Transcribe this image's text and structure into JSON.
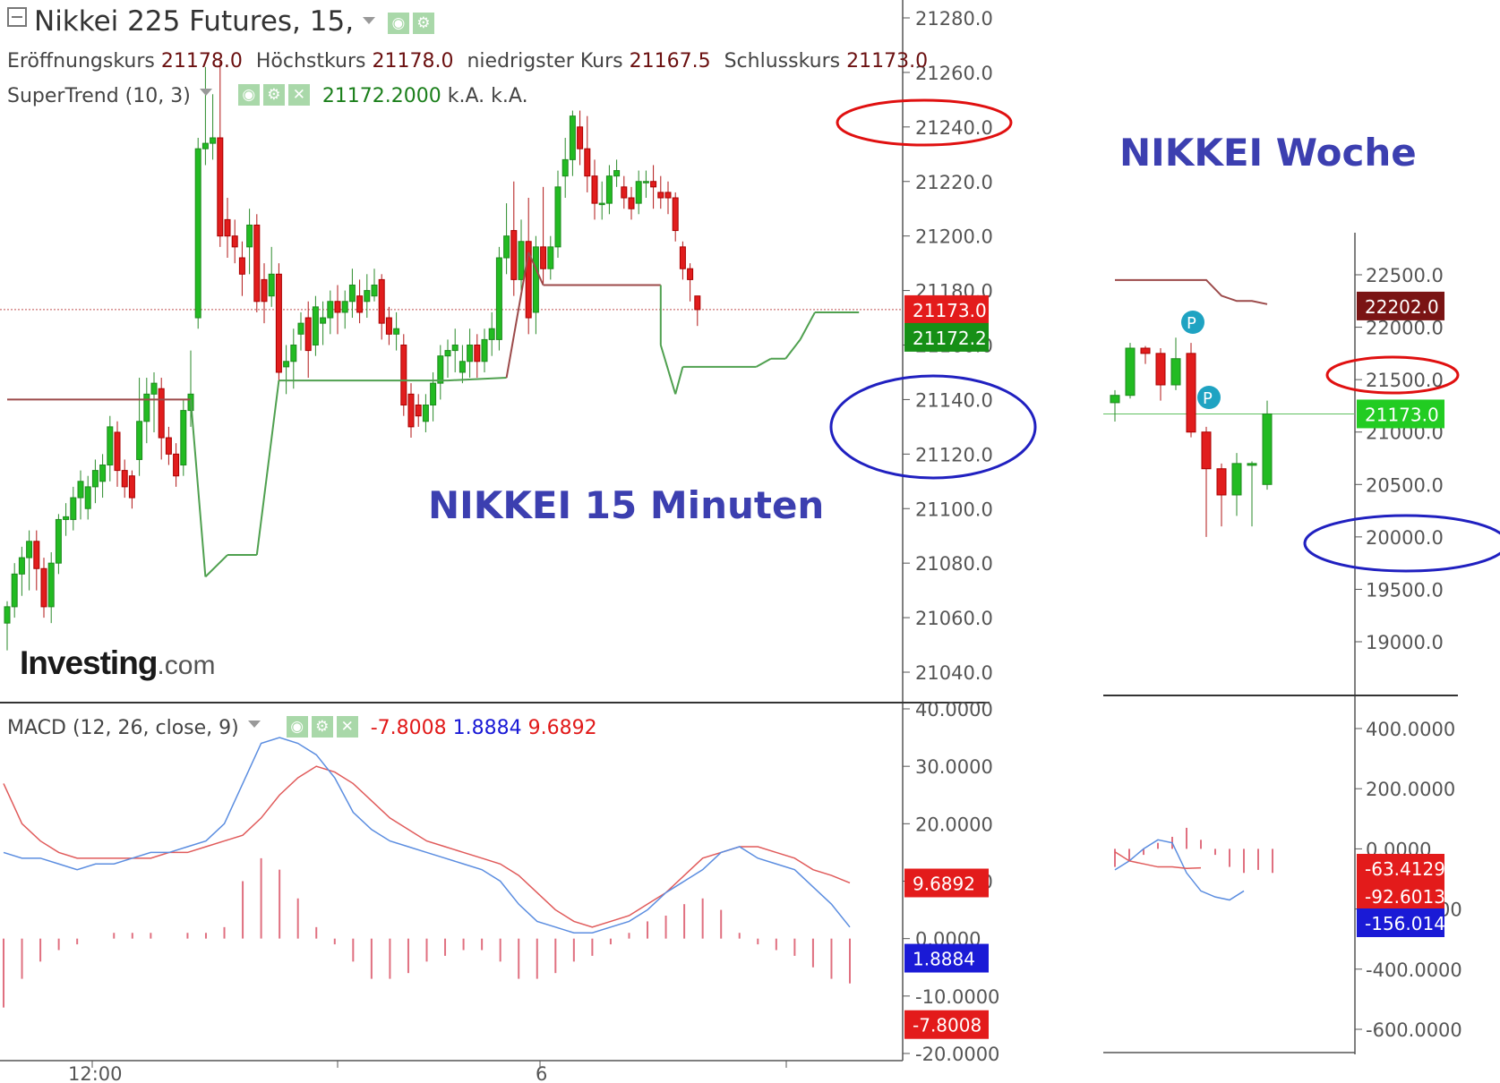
{
  "header": {
    "title": "Nikkei 225 Futures, 15,",
    "ohlc": [
      {
        "label": "Eröffnungskurs",
        "value": "21178.0"
      },
      {
        "label": "Höchstkurs",
        "value": "21178.0"
      },
      {
        "label": "niedrigster Kurs",
        "value": "21167.5"
      },
      {
        "label": "Schlusskurs",
        "value": "21173.0"
      }
    ],
    "supertrend": {
      "label": "SuperTrend (10, 3)",
      "value": "21172.2000",
      "v2": "k.A.",
      "v3": "k.A."
    },
    "macd": {
      "label": "MACD (12, 26, close, 9)",
      "v1": "-7.8008",
      "v2": "1.8884",
      "v3": "9.6892"
    }
  },
  "annotations": {
    "main": "NIKKEI 15 Minuten",
    "weekly": "NIKKEI Woche"
  },
  "logo": {
    "name": "Investing",
    "suffix": ".com"
  },
  "icons": [
    "collapse-icon",
    "dropdown-icon",
    "eye-icon",
    "gear-icon",
    "close-icon"
  ],
  "colors": {
    "up": "#22bb22",
    "down": "#e11d1d",
    "supertrend_up": "#4fa04f",
    "supertrend_down": "#9c4a4a",
    "macd": "#5b8de0",
    "signal": "#e05a5a",
    "hist": "#e07080",
    "circle_red": "#e01010",
    "circle_blue": "#2020c0"
  },
  "chart_data": [
    {
      "type": "candlestick",
      "title": "Nikkei 225 Futures, 15",
      "ylim": [
        21030,
        21290
      ],
      "yticks": [
        "21280.0",
        "21260.0",
        "21240.0",
        "21220.0",
        "21200.0",
        "21180.0",
        "21160.0",
        "21140.0",
        "21120.0",
        "21100.0",
        "21080.0",
        "21060.0",
        "21040.0"
      ],
      "xticks": [
        "12:00",
        "6"
      ],
      "last_price": "21173.0",
      "supertrend_value": "21172.2",
      "candles": [
        [
          21058,
          21064,
          21048,
          21066
        ],
        [
          21064,
          21076,
          21060,
          21080
        ],
        [
          21076,
          21082,
          21068,
          21086
        ],
        [
          21082,
          21088,
          21070,
          21092
        ],
        [
          21088,
          21078,
          21070,
          21092
        ],
        [
          21078,
          21064,
          21060,
          21082
        ],
        [
          21064,
          21080,
          21058,
          21084
        ],
        [
          21080,
          21096,
          21076,
          21098
        ],
        [
          21096,
          21097,
          21090,
          21102
        ],
        [
          21096,
          21104,
          21092,
          21108
        ],
        [
          21104,
          21110,
          21096,
          21114
        ],
        [
          21100,
          21108,
          21096,
          21112
        ],
        [
          21108,
          21114,
          21102,
          21118
        ],
        [
          21110,
          21116,
          21104,
          21120
        ],
        [
          21116,
          21130,
          21110,
          21134
        ],
        [
          21128,
          21114,
          21108,
          21132
        ],
        [
          21114,
          21108,
          21104,
          21118
        ],
        [
          21112,
          21104,
          21100,
          21114
        ],
        [
          21118,
          21132,
          21112,
          21148
        ],
        [
          21132,
          21142,
          21124,
          21148
        ],
        [
          21142,
          21146,
          21128,
          21150
        ],
        [
          21144,
          21126,
          21118,
          21148
        ],
        [
          21126,
          21120,
          21116,
          21130
        ],
        [
          21120,
          21112,
          21108,
          21124
        ],
        [
          21116,
          21136,
          21112,
          21140
        ],
        [
          21136,
          21142,
          21130,
          21158
        ],
        [
          21170,
          21232,
          21166,
          21236
        ],
        [
          21232,
          21234,
          21226,
          21262
        ],
        [
          21234,
          21236,
          21228,
          21252
        ],
        [
          21236,
          21200,
          21196,
          21264
        ],
        [
          21206,
          21200,
          21192,
          21214
        ],
        [
          21200,
          21196,
          21190,
          21206
        ],
        [
          21192,
          21186,
          21178,
          21198
        ],
        [
          21196,
          21204,
          21186,
          21210
        ],
        [
          21204,
          21176,
          21172,
          21208
        ],
        [
          21184,
          21176,
          21168,
          21190
        ],
        [
          21178,
          21186,
          21174,
          21196
        ],
        [
          21186,
          21150,
          21146,
          21190
        ],
        [
          21152,
          21154,
          21142,
          21160
        ],
        [
          21154,
          21160,
          21144,
          21166
        ],
        [
          21164,
          21168,
          21158,
          21172
        ],
        [
          21170,
          21158,
          21148,
          21176
        ],
        [
          21160,
          21174,
          21156,
          21178
        ],
        [
          21168,
          21170,
          21160,
          21176
        ],
        [
          21170,
          21176,
          21164,
          21180
        ],
        [
          21176,
          21172,
          21164,
          21182
        ],
        [
          21172,
          21176,
          21166,
          21180
        ],
        [
          21176,
          21182,
          21170,
          21188
        ],
        [
          21178,
          21172,
          21168,
          21184
        ],
        [
          21176,
          21180,
          21170,
          21186
        ],
        [
          21178,
          21182,
          21176,
          21188
        ],
        [
          21184,
          21168,
          21162,
          21186
        ],
        [
          21170,
          21164,
          21160,
          21174
        ],
        [
          21164,
          21166,
          21158,
          21172
        ],
        [
          21160,
          21138,
          21134,
          21164
        ],
        [
          21142,
          21130,
          21126,
          21146
        ],
        [
          21138,
          21134,
          21130,
          21142
        ],
        [
          21132,
          21138,
          21128,
          21142
        ],
        [
          21138,
          21146,
          21132,
          21150
        ],
        [
          21146,
          21156,
          21140,
          21160
        ],
        [
          21156,
          21158,
          21148,
          21162
        ],
        [
          21158,
          21160,
          21150,
          21166
        ],
        [
          21150,
          21154,
          21146,
          21160
        ],
        [
          21154,
          21160,
          21148,
          21166
        ],
        [
          21160,
          21154,
          21148,
          21164
        ],
        [
          21154,
          21162,
          21150,
          21166
        ],
        [
          21162,
          21166,
          21156,
          21172
        ],
        [
          21162,
          21192,
          21158,
          21196
        ],
        [
          21192,
          21200,
          21186,
          21212
        ],
        [
          21202,
          21184,
          21178,
          21220
        ],
        [
          21184,
          21198,
          21180,
          21206
        ],
        [
          21198,
          21170,
          21164,
          21214
        ],
        [
          21172,
          21196,
          21164,
          21200
        ],
        [
          21196,
          21188,
          21182,
          21218
        ],
        [
          21188,
          21196,
          21184,
          21200
        ],
        [
          21196,
          21218,
          21192,
          21224
        ],
        [
          21222,
          21228,
          21214,
          21236
        ],
        [
          21228,
          21244,
          21222,
          21246
        ],
        [
          21240,
          21232,
          21226,
          21246
        ],
        [
          21232,
          21222,
          21216,
          21244
        ],
        [
          21222,
          21212,
          21206,
          21228
        ],
        [
          21212,
          21212,
          21206,
          21220
        ],
        [
          21212,
          21222,
          21208,
          21226
        ],
        [
          21222,
          21224,
          21218,
          21228
        ],
        [
          21218,
          21214,
          21210,
          21222
        ],
        [
          21214,
          21210,
          21206,
          21218
        ],
        [
          21212,
          21220,
          21208,
          21224
        ],
        [
          21220,
          21220,
          21214,
          21224
        ],
        [
          21220,
          21218,
          21210,
          21226
        ],
        [
          21216,
          21214,
          21210,
          21222
        ],
        [
          21216,
          21214,
          21208,
          21220
        ],
        [
          21214,
          21202,
          21198,
          21216
        ],
        [
          21196,
          21188,
          21184,
          21198
        ],
        [
          21188,
          21184,
          21176,
          21190
        ],
        [
          21178,
          21173,
          21167,
          21178
        ]
      ],
      "supertrend": [
        [
          0,
          21140,
          "d"
        ],
        [
          25,
          21140,
          "d"
        ],
        [
          27,
          21075,
          "u"
        ],
        [
          30,
          21083,
          "u"
        ],
        [
          34,
          21083,
          "u"
        ],
        [
          37,
          21147,
          "u"
        ],
        [
          60,
          21147,
          "u"
        ],
        [
          68,
          21148,
          "u"
        ],
        [
          71,
          21194,
          "d"
        ],
        [
          73,
          21182,
          "d"
        ],
        [
          80,
          21182,
          "d"
        ],
        [
          89,
          21182,
          "d"
        ],
        [
          89,
          21160,
          "u"
        ],
        [
          91,
          21142,
          "u"
        ],
        [
          92,
          21152,
          "u"
        ],
        [
          102,
          21152,
          "u"
        ],
        [
          104,
          21155,
          "u"
        ],
        [
          106,
          21155,
          "u"
        ],
        [
          108,
          21162,
          "u"
        ],
        [
          110,
          21172,
          "u"
        ],
        [
          116,
          21172,
          "u"
        ]
      ]
    },
    {
      "type": "line",
      "title": "MACD (12, 26, close, 9)",
      "ylim": [
        -20,
        40
      ],
      "yticks": [
        "40.0000",
        "30.0000",
        "20.0000",
        "10.0000",
        "0.0000",
        "-10.0000",
        "-20.0000"
      ],
      "labels": {
        "signal": "9.6892",
        "macd": "1.8884",
        "hist": "-7.8008"
      },
      "series": [
        {
          "name": "MACD",
          "values": [
            15,
            14,
            14,
            13,
            12,
            13,
            13,
            14,
            15,
            15,
            16,
            17,
            20,
            27,
            34,
            35,
            34,
            32,
            28,
            22,
            19,
            17,
            16,
            15,
            14,
            13,
            12,
            10,
            6,
            3,
            2,
            1,
            1,
            2,
            3,
            5,
            8,
            10,
            12,
            15,
            16,
            14,
            13,
            12,
            9,
            6,
            2
          ]
        },
        {
          "name": "Signal",
          "values": [
            27,
            20,
            17,
            15,
            14,
            14,
            14,
            14,
            14,
            15,
            15,
            16,
            17,
            18,
            21,
            25,
            28,
            30,
            29,
            27,
            24,
            21,
            19,
            17,
            16,
            15,
            14,
            13,
            11,
            8,
            5,
            3,
            2,
            3,
            4,
            6,
            8,
            11,
            14,
            15,
            16,
            16,
            15,
            14,
            12,
            11,
            9.7
          ]
        },
        {
          "name": "Histogram",
          "values": [
            -12,
            -7,
            -4,
            -2,
            -1,
            0,
            1,
            1,
            1,
            0,
            1,
            1,
            2,
            10,
            14,
            12,
            7,
            2,
            -1,
            -4,
            -7,
            -7,
            -6,
            -4,
            -3,
            -2,
            -2,
            -4,
            -7,
            -7,
            -6,
            -4,
            -3,
            -1,
            1,
            3,
            4,
            6,
            7,
            5,
            1,
            -1,
            -2,
            -3,
            -5,
            -7,
            -7.8
          ]
        }
      ]
    },
    {
      "type": "candlestick",
      "title": "NIKKEI Woche",
      "ylim": [
        18700,
        22900
      ],
      "yticks": [
        "22500.0",
        "22000.0",
        "21500.0",
        "21000.0",
        "20500.0",
        "20000.0",
        "19500.0",
        "19000.0"
      ],
      "price_labels": {
        "upper": "22202.0",
        "current": "21173.0"
      },
      "markers": [
        "P",
        "P"
      ],
      "candles": [
        [
          21280,
          21350,
          21100,
          21400
        ],
        [
          21350,
          21800,
          21320,
          21850
        ],
        [
          21800,
          21750,
          21650,
          21820
        ],
        [
          21750,
          21450,
          21300,
          21800
        ],
        [
          21450,
          21700,
          21400,
          21900
        ],
        [
          21750,
          21000,
          20950,
          21850
        ],
        [
          21000,
          20650,
          20000,
          21050
        ],
        [
          20650,
          20400,
          20100,
          20700
        ],
        [
          20400,
          20700,
          20200,
          20800
        ],
        [
          20700,
          20700,
          20100,
          20720
        ],
        [
          20500,
          21173,
          20450,
          21300
        ]
      ],
      "supertrend": [
        22450,
        22450,
        22450,
        22450,
        22450,
        22450,
        22450,
        22300,
        22250,
        22250,
        22220
      ],
      "macd_labels": [
        "-63.4129",
        "-92.6013",
        "-156.0142"
      ],
      "macd_yticks": [
        "400.0000",
        "200.0000",
        "0.0000",
        "-200.0000",
        "-400.0000",
        "-600.0000"
      ],
      "macd_hist": [
        -60,
        -40,
        -20,
        20,
        40,
        70,
        30,
        -20,
        -60,
        -80,
        -70,
        -80
      ],
      "macd_line": [
        -70,
        -40,
        0,
        30,
        20,
        -80,
        -140,
        -160,
        -170,
        -140
      ],
      "signal_line": [
        -10,
        -40,
        -50,
        -60,
        -60,
        -65,
        -63
      ]
    }
  ]
}
